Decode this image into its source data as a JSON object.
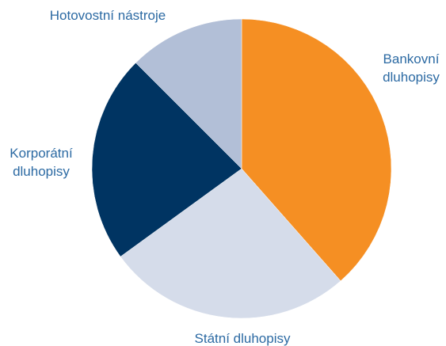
{
  "chart_data": {
    "type": "pie",
    "start_angle_deg": 0,
    "direction": "clockwise",
    "slices": [
      {
        "label": "Bankovní dluhopisy",
        "lines": [
          "Bankovní",
          "dluhopisy"
        ],
        "value": 38.5,
        "color": "#f58f23"
      },
      {
        "label": "Státní dluhopisy",
        "lines": [
          "Státní dluhopisy"
        ],
        "value": 26.5,
        "color": "#d5dcea"
      },
      {
        "label": "Korporátní dluhopisy",
        "lines": [
          "Korporátní",
          "dluhopisy"
        ],
        "value": 22.5,
        "color": "#003462"
      },
      {
        "label": "Hotovostní nástroje",
        "lines": [
          "Hotovostní nástroje"
        ],
        "value": 12.5,
        "color": "#b2bfd7"
      }
    ],
    "label_color": "#2c6aa3"
  }
}
